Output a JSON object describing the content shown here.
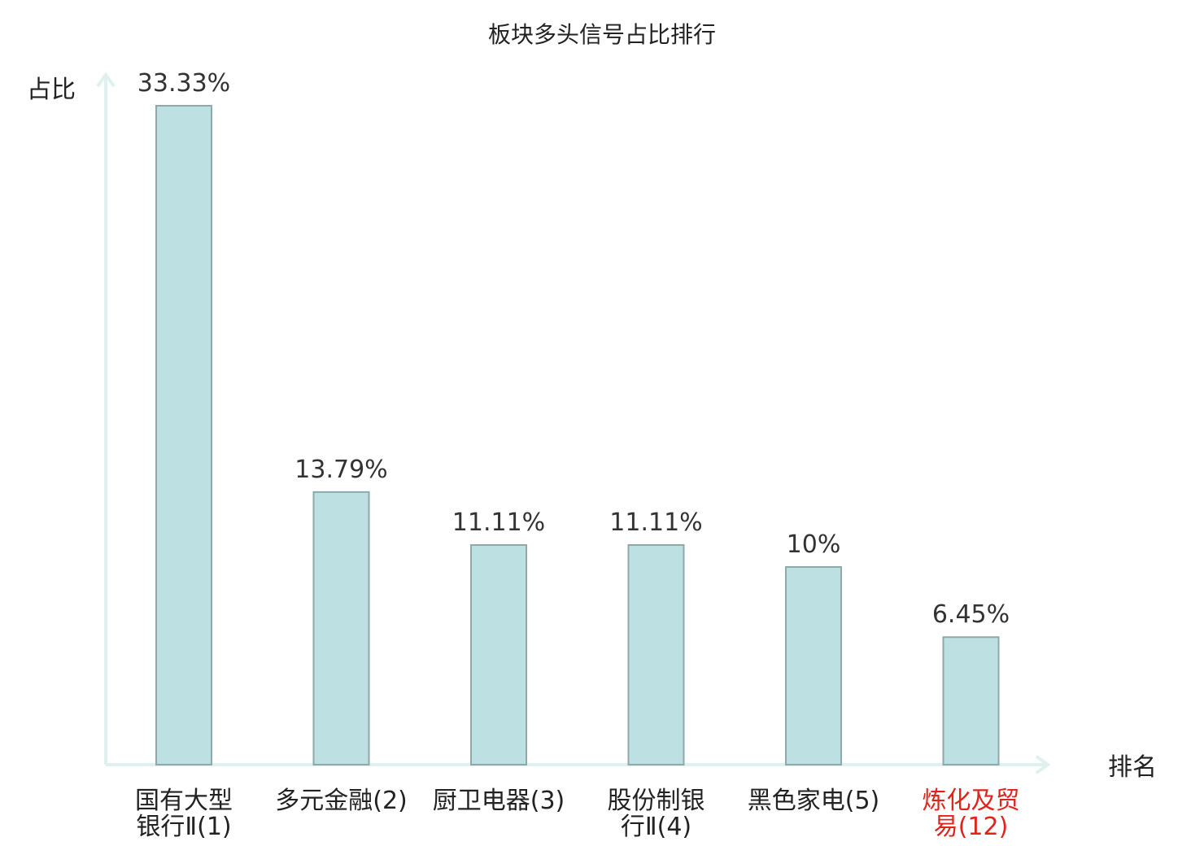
{
  "chart_data": {
    "type": "bar",
    "title": "板块多头信号占比排行",
    "ylabel": "占比",
    "xlabel": "排名",
    "ylim": [
      0,
      35
    ],
    "categories": [
      [
        "国有大型",
        "银行Ⅱ(1)"
      ],
      [
        "多元金融(2)"
      ],
      [
        "厨卫电器(3)"
      ],
      [
        "股份制银",
        "行Ⅱ(4)"
      ],
      [
        "黑色家电(5)"
      ],
      [
        "炼化及贸",
        "易(12)"
      ]
    ],
    "values": [
      33.33,
      13.79,
      11.11,
      11.11,
      10,
      6.45
    ],
    "value_labels": [
      "33.33%",
      "13.79%",
      "11.11%",
      "11.11%",
      "10%",
      "6.45%"
    ],
    "highlight_index": 5,
    "grid": false,
    "colors": {
      "bar_fill": "#bde0e3",
      "bar_stroke": "#8fa9ab",
      "axis": "#dff1ef",
      "text": "#222222",
      "highlight_text": "#e0241b"
    }
  }
}
